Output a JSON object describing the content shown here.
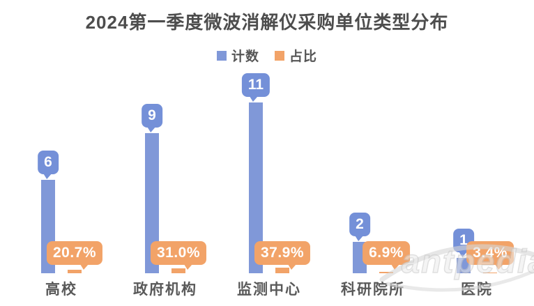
{
  "watermark": {
    "text": "antpedia"
  },
  "chart_data": {
    "type": "bar",
    "title": "2024第一季度微波消解仪采购单位类型分布",
    "categories": [
      "高校",
      "政府机构",
      "监测中心",
      "科研院所",
      "医院"
    ],
    "series": [
      {
        "name": "计数",
        "color": "#8098d8",
        "callout_color": "#7490d8",
        "values": [
          6,
          9,
          11,
          2,
          1
        ],
        "labels": [
          "6",
          "9",
          "11",
          "2",
          "1"
        ]
      },
      {
        "name": "占比",
        "color": "#f2a368",
        "callout_color": "#f2a368",
        "values": [
          0.207,
          0.31,
          0.379,
          0.069,
          0.034
        ],
        "labels": [
          "20.7%",
          "31.0%",
          "37.9%",
          "6.9%",
          "3.4%"
        ]
      }
    ],
    "xlabel": "",
    "ylabel": "",
    "value_axis_visible": false,
    "grid": false,
    "legend_position": "top",
    "data_label_style": "callout",
    "text_colors": {
      "title": "#4d4d4d",
      "category": "#595959",
      "legend": "#555555"
    }
  }
}
